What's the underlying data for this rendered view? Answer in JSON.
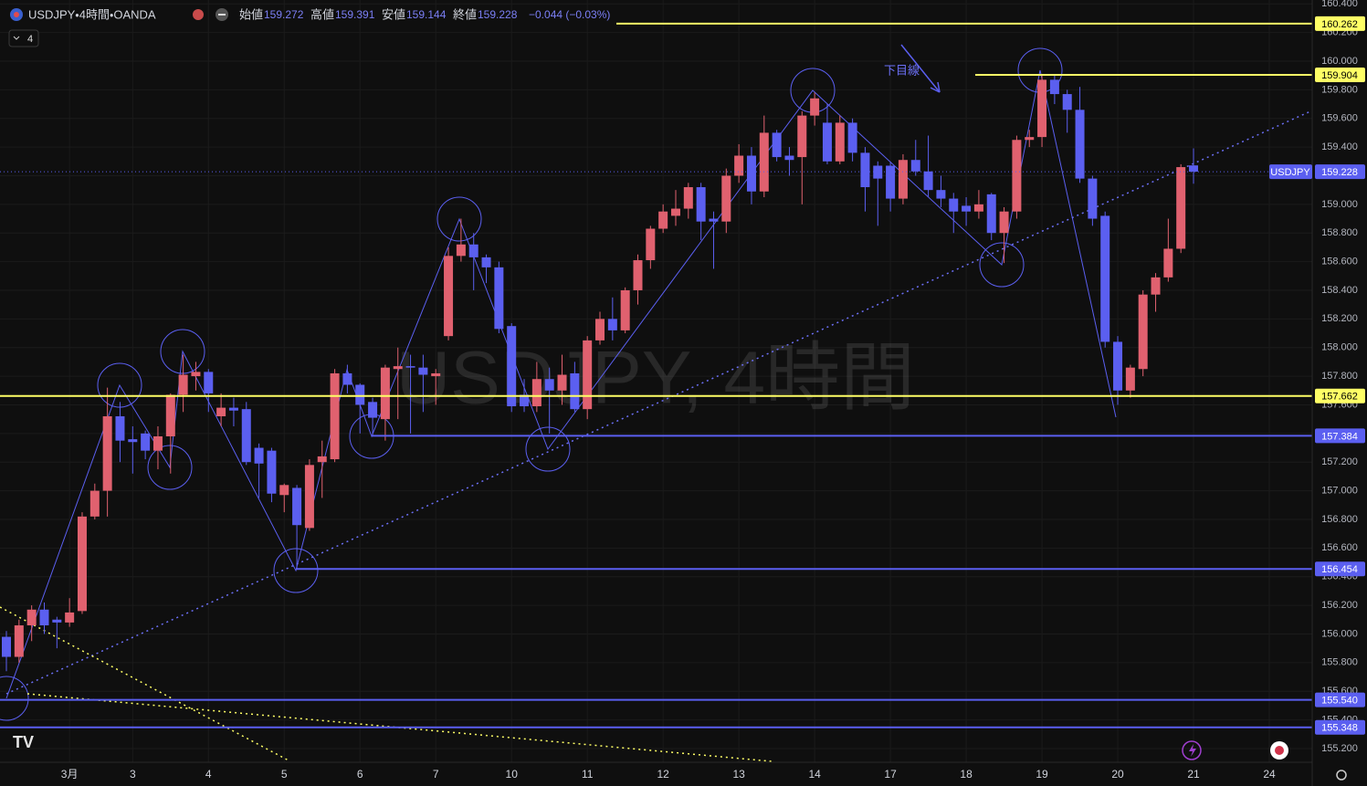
{
  "chart_data": {
    "type": "candlestick",
    "title": "USDJPY・4時間・OANDA",
    "watermark": "USDJPY, 4時間",
    "price_tag_symbol": "USDJPY",
    "collapsed_indicators": 4,
    "header_labels": [
      "始値",
      "高値",
      "安値",
      "終値"
    ],
    "change": "−0.044 (−0.03%)",
    "annotation": "下目線",
    "up_color": "#e0616f",
    "down_color": "#5b5ff0",
    "grid": true,
    "categories": [
      null,
      null,
      null,
      null,
      null,
      "3月",
      null,
      null,
      null,
      null,
      "3",
      null,
      null,
      null,
      null,
      null,
      "4",
      null,
      null,
      null,
      null,
      null,
      "5",
      null,
      null,
      null,
      null,
      null,
      "6",
      null,
      null,
      null,
      null,
      null,
      "7",
      null,
      null,
      null,
      null,
      null,
      "10",
      null,
      null,
      null,
      null,
      null,
      "11",
      null,
      null,
      null,
      null,
      null,
      "12",
      null,
      null,
      null,
      null,
      null,
      "13",
      null,
      null,
      null,
      null,
      null,
      "14",
      null,
      null,
      null,
      null,
      null,
      "17",
      null,
      null,
      null,
      null,
      null,
      "18",
      null,
      null,
      null,
      null,
      null,
      "19",
      null,
      null,
      null,
      null,
      null,
      "20",
      null,
      null,
      null,
      null,
      null,
      "21",
      null,
      null,
      null,
      null,
      null,
      "24"
    ],
    "open": [
      155.98,
      155.84,
      156.06,
      156.17,
      156.1,
      156.08,
      156.16,
      156.82,
      157.0,
      157.52,
      157.36,
      157.4,
      157.28,
      157.38,
      157.67,
      157.8,
      157.83,
      157.52,
      157.58,
      157.57,
      157.3,
      157.28,
      156.97,
      157.02,
      156.74,
      157.2,
      157.22,
      157.82,
      157.74,
      157.62,
      157.5,
      157.85,
      157.87,
      157.86,
      157.8,
      158.08,
      158.64,
      158.72,
      158.63,
      158.56,
      158.15,
      157.67,
      157.59,
      157.78,
      157.7,
      157.82,
      157.57,
      158.05,
      158.2,
      158.12,
      158.4,
      158.61,
      158.83,
      158.92,
      158.97,
      159.12,
      158.9,
      158.88,
      159.2,
      159.34,
      159.09,
      159.5,
      159.34,
      159.33,
      159.62,
      159.57,
      159.3,
      159.57,
      159.36,
      159.27,
      159.27,
      159.04,
      159.31,
      159.23,
      159.1,
      159.04,
      158.99,
      158.95,
      159.07,
      158.8,
      158.95,
      159.45,
      159.47,
      159.87,
      159.77,
      159.66,
      159.18,
      158.92,
      158.04,
      157.7,
      157.85,
      158.37,
      158.49,
      158.69,
      159.272,
      null,
      null,
      null,
      null,
      null,
      null
    ],
    "high": [
      156.02,
      156.1,
      156.2,
      156.22,
      156.12,
      156.25,
      156.85,
      157.05,
      157.72,
      157.62,
      157.45,
      157.42,
      157.45,
      157.68,
      157.95,
      157.9,
      157.85,
      157.68,
      157.65,
      157.62,
      157.33,
      157.3,
      157.05,
      157.04,
      157.22,
      157.35,
      157.85,
      157.88,
      157.75,
      157.65,
      157.88,
      158.0,
      157.95,
      157.95,
      157.85,
      158.7,
      158.9,
      158.8,
      158.65,
      158.6,
      158.17,
      157.78,
      157.9,
      157.86,
      157.95,
      157.9,
      158.08,
      158.25,
      158.35,
      158.42,
      158.65,
      158.85,
      159.0,
      159.1,
      159.15,
      159.15,
      158.95,
      159.25,
      159.42,
      159.4,
      159.62,
      159.52,
      159.4,
      159.65,
      159.78,
      159.7,
      159.62,
      159.6,
      159.4,
      159.3,
      159.3,
      159.35,
      159.45,
      159.48,
      159.2,
      159.08,
      159.05,
      159.1,
      159.08,
      158.98,
      159.48,
      159.52,
      159.91,
      159.9,
      159.8,
      159.82,
      159.2,
      158.95,
      158.08,
      157.88,
      158.4,
      158.52,
      158.9,
      159.28,
      159.391,
      null,
      null,
      null,
      null,
      null,
      null
    ],
    "low": [
      155.74,
      155.8,
      155.95,
      156.0,
      155.9,
      156.05,
      156.14,
      156.8,
      156.82,
      157.2,
      157.12,
      157.22,
      157.15,
      157.12,
      157.55,
      157.7,
      157.55,
      157.45,
      157.45,
      157.18,
      156.95,
      156.92,
      156.85,
      156.45,
      156.72,
      156.95,
      157.2,
      157.68,
      157.4,
      157.38,
      157.35,
      157.5,
      157.4,
      157.55,
      157.6,
      158.05,
      158.6,
      158.4,
      158.45,
      158.1,
      157.55,
      157.55,
      157.55,
      157.4,
      157.6,
      157.55,
      157.5,
      158.02,
      158.05,
      158.1,
      158.3,
      158.55,
      158.8,
      158.85,
      158.9,
      158.75,
      158.55,
      158.8,
      159.15,
      159.0,
      159.05,
      159.3,
      159.2,
      159.0,
      159.55,
      159.28,
      159.28,
      159.3,
      158.95,
      158.85,
      158.95,
      159.0,
      159.2,
      159.05,
      158.98,
      158.8,
      158.85,
      158.9,
      158.75,
      158.59,
      158.9,
      159.4,
      159.4,
      159.7,
      159.5,
      159.15,
      158.85,
      158.0,
      157.6,
      157.65,
      157.8,
      158.25,
      158.46,
      158.66,
      159.144,
      null,
      null,
      null,
      null,
      null,
      null
    ],
    "close": [
      155.84,
      156.06,
      156.17,
      156.06,
      156.08,
      156.15,
      156.82,
      157.0,
      157.52,
      157.35,
      157.34,
      157.28,
      157.38,
      157.67,
      157.81,
      157.83,
      157.68,
      157.58,
      157.56,
      157.2,
      157.19,
      156.98,
      157.04,
      156.76,
      157.18,
      157.24,
      157.82,
      157.74,
      157.6,
      157.51,
      157.86,
      157.87,
      157.86,
      157.81,
      157.82,
      158.64,
      158.72,
      158.63,
      158.56,
      158.13,
      157.59,
      157.59,
      157.78,
      157.7,
      157.81,
      157.57,
      158.05,
      158.2,
      158.12,
      158.4,
      158.61,
      158.83,
      158.95,
      158.97,
      159.12,
      158.88,
      158.88,
      159.2,
      159.34,
      159.09,
      159.5,
      159.33,
      159.31,
      159.62,
      159.74,
      159.3,
      159.57,
      159.36,
      159.12,
      159.18,
      159.04,
      159.31,
      159.23,
      159.1,
      159.04,
      158.95,
      158.95,
      159.0,
      158.8,
      158.95,
      159.45,
      159.47,
      159.87,
      159.77,
      159.66,
      159.18,
      158.9,
      158.04,
      157.7,
      157.86,
      158.37,
      158.49,
      158.69,
      159.26,
      159.228,
      null,
      null,
      null,
      null,
      null,
      null
    ],
    "ylim": [
      155.104,
      160.427
    ],
    "yticks": [
      {
        "value": 155.2,
        "label": "155.200"
      },
      {
        "value": 155.4,
        "label": "155.400"
      },
      {
        "value": 155.6,
        "label": "155.600"
      },
      {
        "value": 155.8,
        "label": "155.800"
      },
      {
        "value": 156.0,
        "label": "156.000"
      },
      {
        "value": 156.2,
        "label": "156.200"
      },
      {
        "value": 156.4,
        "label": "156.400"
      },
      {
        "value": 156.6,
        "label": "156.600"
      },
      {
        "value": 156.8,
        "label": "156.800"
      },
      {
        "value": 157.0,
        "label": "157.000"
      },
      {
        "value": 157.2,
        "label": "157.200"
      },
      {
        "value": 157.4,
        "label": "157.400"
      },
      {
        "value": 157.6,
        "label": "157.600"
      },
      {
        "value": 157.8,
        "label": "157.800"
      },
      {
        "value": 158.0,
        "label": "158.000"
      },
      {
        "value": 158.2,
        "label": "158.200"
      },
      {
        "value": 158.4,
        "label": "158.400"
      },
      {
        "value": 158.6,
        "label": "158.600"
      },
      {
        "value": 158.8,
        "label": "158.800"
      },
      {
        "value": 159.0,
        "label": "159.000"
      },
      {
        "value": 159.2,
        "label": "159.200"
      },
      {
        "value": 159.4,
        "label": "159.400"
      },
      {
        "value": 159.6,
        "label": "159.600"
      },
      {
        "value": 159.8,
        "label": "159.800"
      },
      {
        "value": 160.0,
        "label": "160.000"
      },
      {
        "value": 160.2,
        "label": "160.200"
      },
      {
        "value": 160.4,
        "label": "160.400"
      }
    ],
    "levels": {
      "values": [
        160.262,
        159.904,
        157.662,
        157.384,
        156.454,
        155.54,
        155.348
      ],
      "value_labels": [
        "160.262",
        "159.904",
        "157.662",
        "157.384",
        "156.454",
        "155.540",
        "155.348"
      ],
      "colors": [
        "#ffff66",
        "#ffff66",
        "#ffff66",
        "#5b5ff0",
        "#5b5ff0",
        "#5b5ff0",
        "#5b5ff0"
      ]
    }
  }
}
